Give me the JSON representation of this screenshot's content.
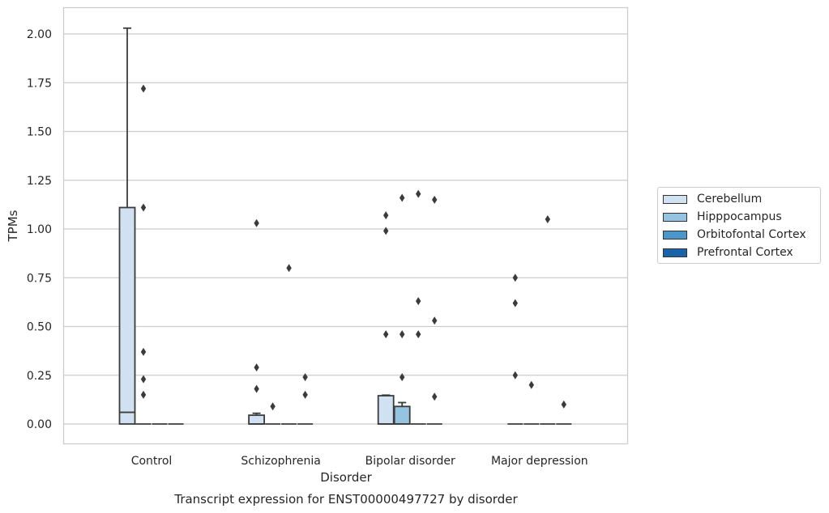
{
  "chart_data": {
    "type": "box",
    "title": "Transcript expression for ENST00000497727 by disorder",
    "xlabel": "Disorder",
    "ylabel": "TPMs",
    "ylim": [
      -0.1,
      2.13
    ],
    "yticks": [
      "0.00",
      "0.25",
      "0.50",
      "0.75",
      "1.00",
      "1.25",
      "1.50",
      "1.75",
      "2.00"
    ],
    "grid": true,
    "legend_position": "right",
    "categories": [
      "Control",
      "Schizophrenia",
      "Bipolar disorder",
      "Major depression"
    ],
    "series": [
      {
        "name": "Cerebellum",
        "color": "#d0e1f2"
      },
      {
        "name": "Hipppocampus",
        "color": "#94c4df"
      },
      {
        "name": "Orbitofontal Cortex",
        "color": "#4a98c9"
      },
      {
        "name": "Prefrontal Cortex",
        "color": "#1764ab"
      }
    ],
    "boxes": [
      [
        {
          "q1": 0,
          "median": 0.06,
          "q3": 1.11,
          "whisker_low": 0,
          "whisker_high": 2.03,
          "outliers": []
        },
        {
          "q1": 0,
          "median": 0,
          "q3": 0,
          "whisker_low": 0,
          "whisker_high": 0,
          "outliers": [
            1.72,
            1.11,
            0.37,
            0.23,
            0.15
          ]
        },
        {
          "q1": 0,
          "median": 0,
          "q3": 0,
          "whisker_low": 0,
          "whisker_high": 0,
          "outliers": []
        },
        {
          "q1": 0,
          "median": 0,
          "q3": 0,
          "whisker_low": 0,
          "whisker_high": 0,
          "outliers": []
        }
      ],
      [
        {
          "q1": 0,
          "median": 0,
          "q3": 0.045,
          "whisker_low": 0,
          "whisker_high": 0.055,
          "outliers": [
            1.03,
            0.29,
            0.18
          ]
        },
        {
          "q1": 0,
          "median": 0,
          "q3": 0,
          "whisker_low": 0,
          "whisker_high": 0,
          "outliers": [
            0.09
          ]
        },
        {
          "q1": 0,
          "median": 0,
          "q3": 0,
          "whisker_low": 0,
          "whisker_high": 0,
          "outliers": [
            0.8
          ]
        },
        {
          "q1": 0,
          "median": 0,
          "q3": 0,
          "whisker_low": 0,
          "whisker_high": 0,
          "outliers": [
            0.24,
            0.15
          ]
        }
      ],
      [
        {
          "q1": 0,
          "median": 0,
          "q3": 0.145,
          "whisker_low": 0,
          "whisker_high": 0.148,
          "outliers": [
            1.07,
            0.99,
            0.46
          ]
        },
        {
          "q1": 0,
          "median": 0,
          "q3": 0.09,
          "whisker_low": 0,
          "whisker_high": 0.11,
          "outliers": [
            1.16,
            0.46,
            0.24
          ]
        },
        {
          "q1": 0,
          "median": 0,
          "q3": 0,
          "whisker_low": 0,
          "whisker_high": 0,
          "outliers": [
            1.18,
            0.63,
            0.46
          ]
        },
        {
          "q1": 0,
          "median": 0,
          "q3": 0,
          "whisker_low": 0,
          "whisker_high": 0,
          "outliers": [
            1.15,
            0.53,
            0.14
          ]
        }
      ],
      [
        {
          "q1": 0,
          "median": 0,
          "q3": 0,
          "whisker_low": 0,
          "whisker_high": 0,
          "outliers": [
            0.75,
            0.62,
            0.25
          ]
        },
        {
          "q1": 0,
          "median": 0,
          "q3": 0,
          "whisker_low": 0,
          "whisker_high": 0,
          "outliers": [
            0.2
          ]
        },
        {
          "q1": 0,
          "median": 0,
          "q3": 0,
          "whisker_low": 0,
          "whisker_high": 0,
          "outliers": [
            1.05
          ]
        },
        {
          "q1": 0,
          "median": 0,
          "q3": 0,
          "whisker_low": 0,
          "whisker_high": 0,
          "outliers": [
            0.1
          ]
        }
      ]
    ]
  }
}
